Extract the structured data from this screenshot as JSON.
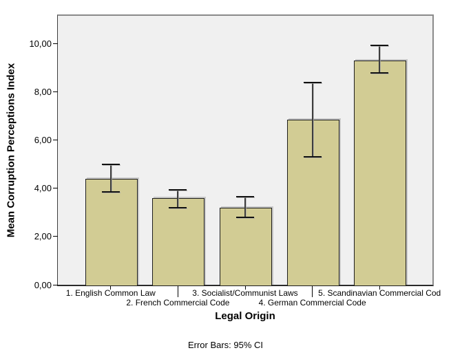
{
  "chart_data": {
    "type": "bar",
    "title": "",
    "ylabel": "Mean Corruption Perceptions Index",
    "xlabel": "Legal Origin",
    "caption": "Error Bars: 95% CI",
    "categories": [
      "1. English Common Law",
      "2. French Commercial Code",
      "3. Socialist/Communist Laws",
      "4. German Commercial Code",
      "5. Scandinavian Commercial Cod"
    ],
    "label_rows": [
      1,
      2,
      1,
      2,
      1
    ],
    "values": [
      4.4,
      3.6,
      3.2,
      6.85,
      9.3
    ],
    "error_bars": {
      "label": "95% CI",
      "low": [
        3.85,
        3.2,
        2.8,
        5.3,
        8.8
      ],
      "high": [
        5.0,
        3.95,
        3.65,
        8.4,
        9.95
      ]
    },
    "y_ticks": [
      {
        "value": 0,
        "label": "0,00"
      },
      {
        "value": 2,
        "label": "2,00"
      },
      {
        "value": 4,
        "label": "4,00"
      },
      {
        "value": 6,
        "label": "6,00"
      },
      {
        "value": 8,
        "label": "8,00"
      },
      {
        "value": 10,
        "label": "10,00"
      }
    ],
    "ylim": [
      0,
      11.17
    ],
    "grid": false,
    "legend": "none",
    "colors": {
      "bar_fill": "#d2cc94",
      "bar_border": "#1c1c1c",
      "plot_background": "#f0f0f0",
      "figure_background": "#ffffff"
    }
  }
}
